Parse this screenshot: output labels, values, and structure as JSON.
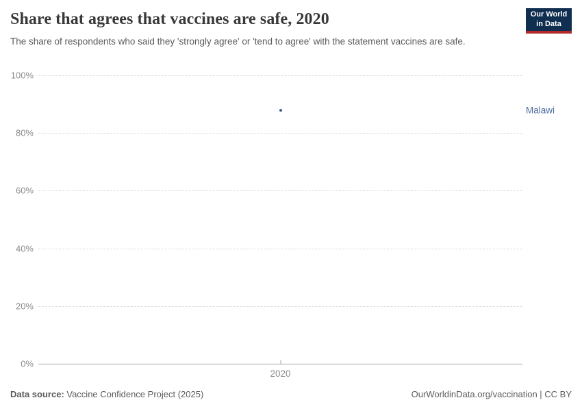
{
  "header": {
    "title": "Share that agrees that vaccines are safe, 2020",
    "subtitle": "The share of respondents who said they 'strongly agree' or 'tend to agree' with the statement vaccines are safe.",
    "logo": {
      "line1": "Our World",
      "line2": "in Data",
      "bg_color": "#102e4f",
      "accent_color": "#b5292a"
    }
  },
  "chart_data": {
    "type": "scatter",
    "title": "Share that agrees that vaccines are safe, 2020",
    "xlabel": "",
    "ylabel": "",
    "x_tick_labels": [
      "2020"
    ],
    "series": [
      {
        "name": "Malawi",
        "x": 2020,
        "value": 88,
        "unit": "%",
        "color": "#3e5c92",
        "label_color": "#4c6a9e"
      }
    ],
    "ylim": [
      0,
      100
    ],
    "yticks": [
      0,
      20,
      40,
      60,
      80,
      100
    ],
    "ytick_format": "{v}%",
    "grid": "dashed-horizontal",
    "legend_position": "right-of-point",
    "colors": {
      "gridline": "#dddddd",
      "axis_line": "#a1a1a1",
      "tick_label": "#8b8b8b"
    }
  },
  "footer": {
    "source_label": "Data source:",
    "source_value": "Vaccine Confidence Project (2025)",
    "credit": "OurWorldinData.org/vaccination | CC BY"
  }
}
